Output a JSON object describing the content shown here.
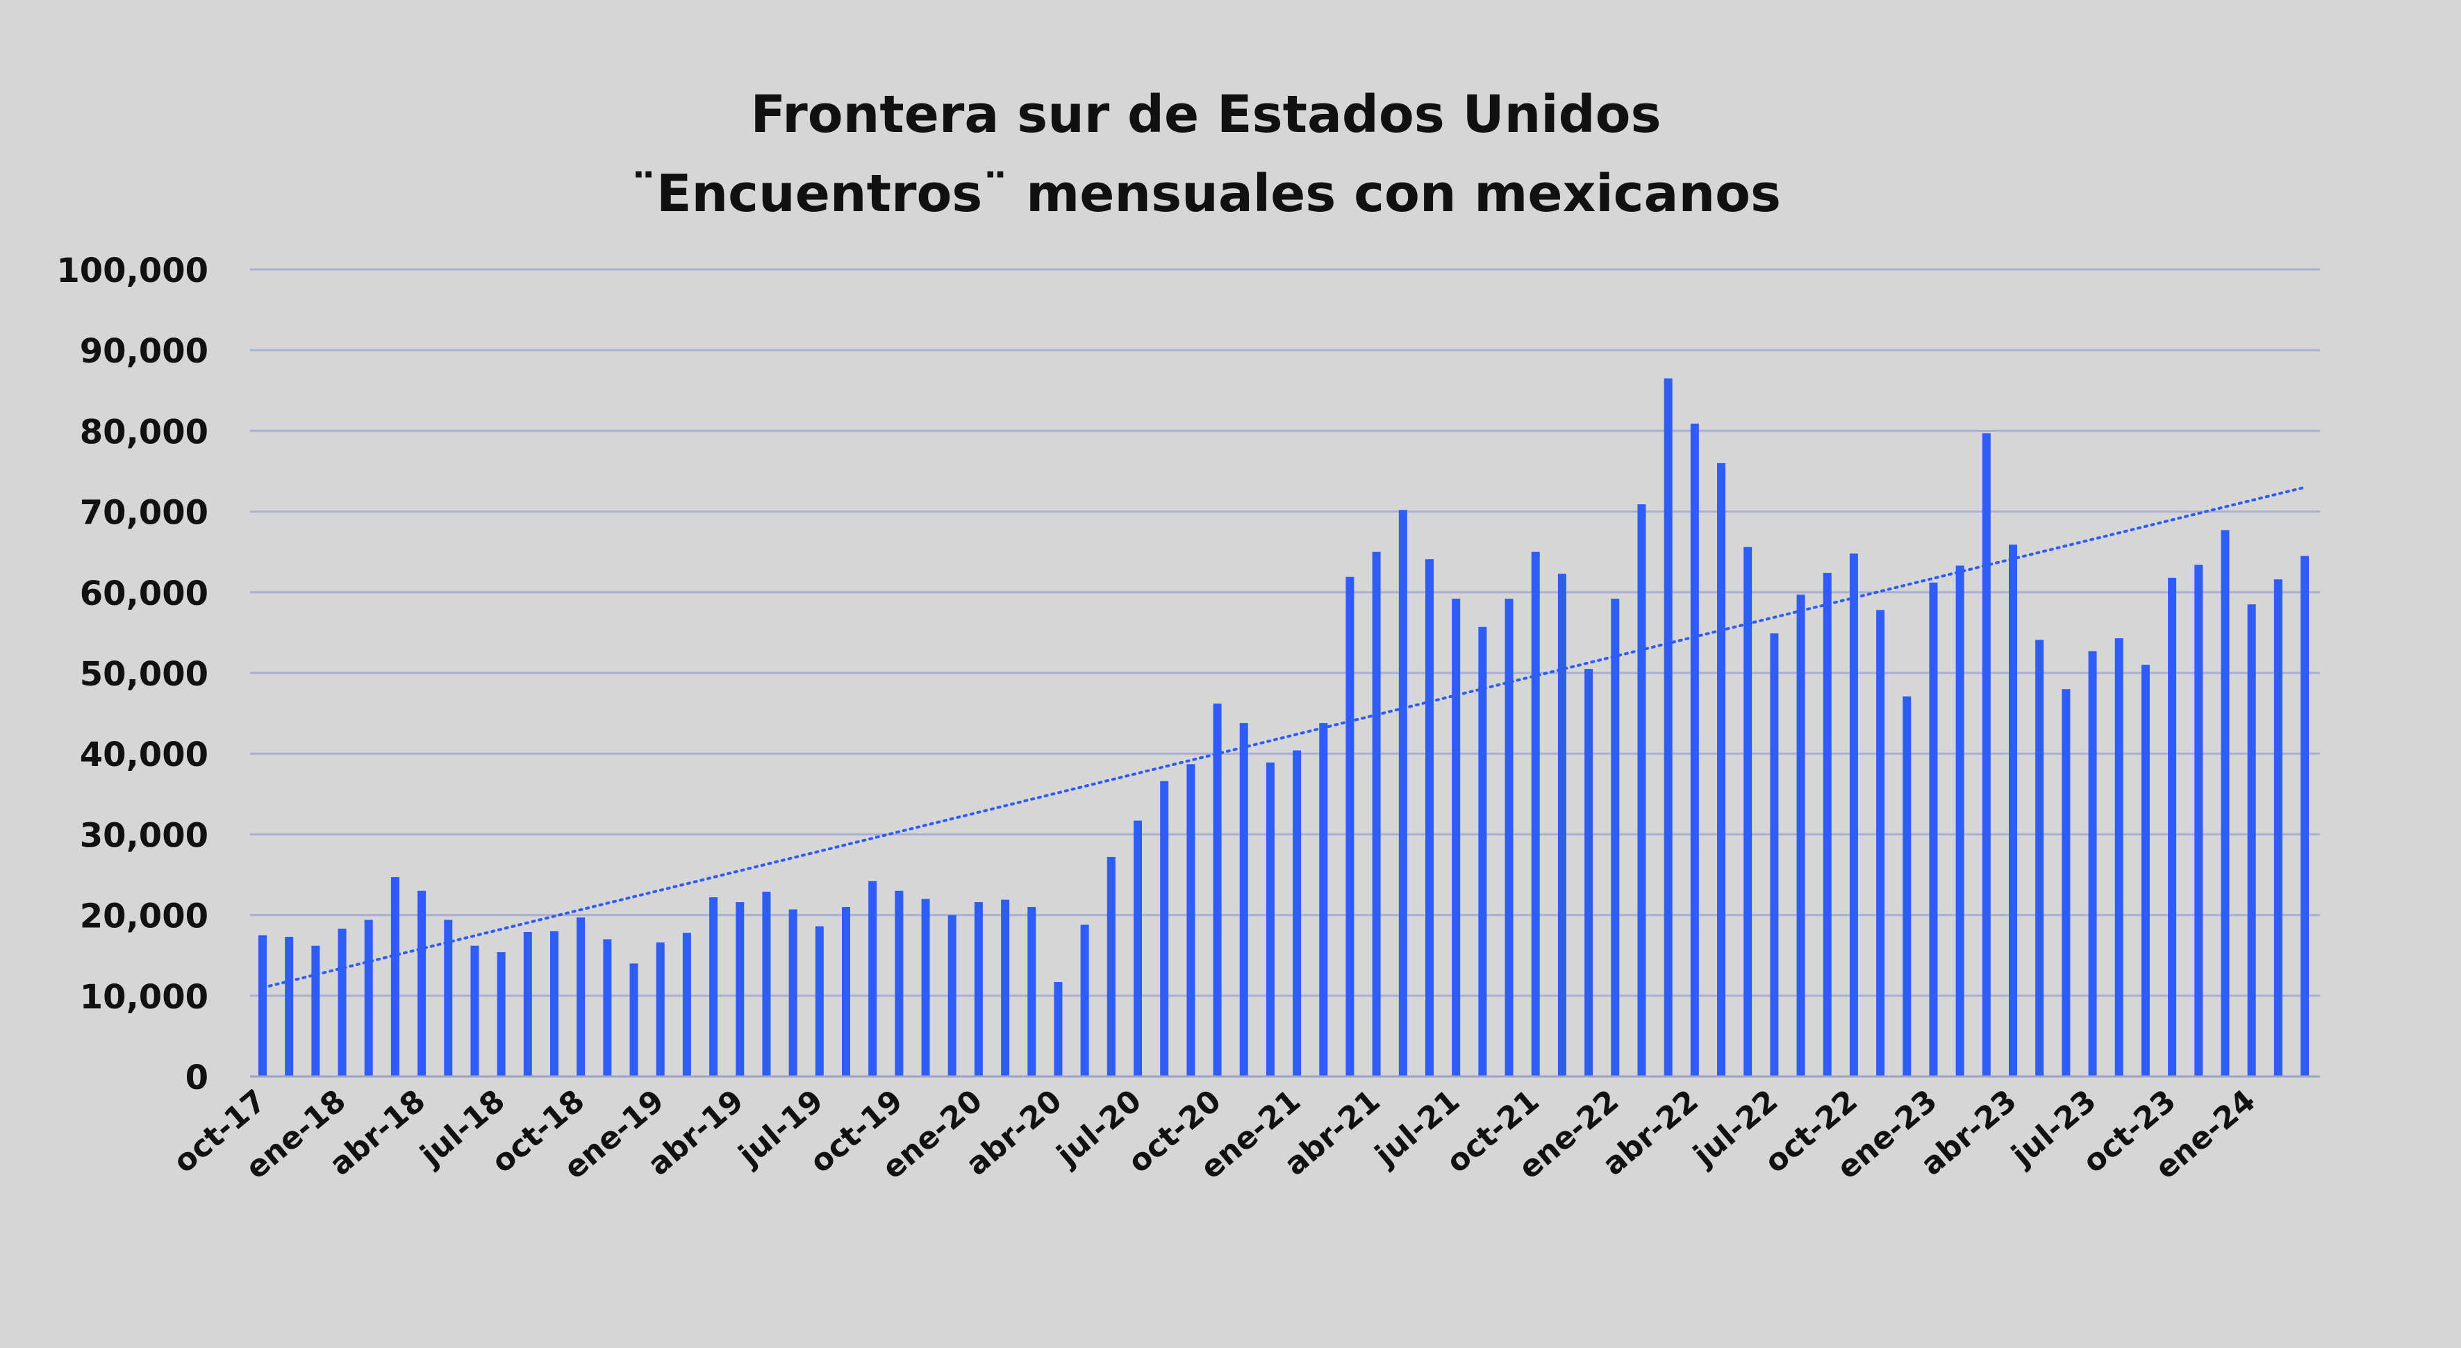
{
  "chart_data": {
    "type": "bar",
    "title": "Frontera sur de Estados Unidos",
    "subtitle": "¨Encuentros¨ mensuales con mexicanos",
    "ylim": [
      0,
      100000
    ],
    "y_ticks": [
      "0",
      "10,000",
      "20,000",
      "30,000",
      "40,000",
      "50,000",
      "60,000",
      "70,000",
      "80,000",
      "90,000",
      "100,000"
    ],
    "x_tick_labels": [
      "oct-17",
      "ene-18",
      "abr-18",
      "jul-18",
      "oct-18",
      "ene-19",
      "abr-19",
      "jul-19",
      "oct-19",
      "ene-20",
      "abr-20",
      "jul-20",
      "oct-20",
      "ene-21",
      "abr-21",
      "jul-21",
      "oct-21",
      "ene-22",
      "abr-22",
      "jul-22",
      "oct-22",
      "ene-23",
      "abr-23",
      "jul-23",
      "oct-23",
      "ene-24"
    ],
    "grid": true,
    "bar_color": "#2f5cf5",
    "trendline": {
      "style": "dotted",
      "start": 11000,
      "end": 73000
    },
    "series": [
      {
        "values": [
          17500,
          17300,
          16200,
          18300,
          19400,
          24700,
          23000,
          19400,
          16200,
          15400,
          17900,
          18000,
          19700,
          17000,
          14000,
          16600,
          17800,
          22200,
          21600,
          22900,
          20700,
          18600,
          21000,
          24200,
          23000,
          22000,
          20000,
          21600,
          21900,
          21000,
          11700,
          18800,
          27200,
          31700,
          36600,
          38700,
          46200,
          43800,
          38900,
          40400,
          43800,
          61900,
          65000,
          70200,
          64100,
          59200,
          55700,
          59200,
          65000,
          62300,
          50500,
          59200,
          70900,
          86500,
          80900,
          76000,
          65600,
          54900,
          59700,
          62400,
          64800,
          57800,
          47100,
          61200,
          63300,
          79700,
          65900,
          54100,
          48000,
          52700,
          54300,
          51000,
          61800,
          63400,
          67700,
          58500,
          61600,
          64500
        ]
      }
    ]
  }
}
